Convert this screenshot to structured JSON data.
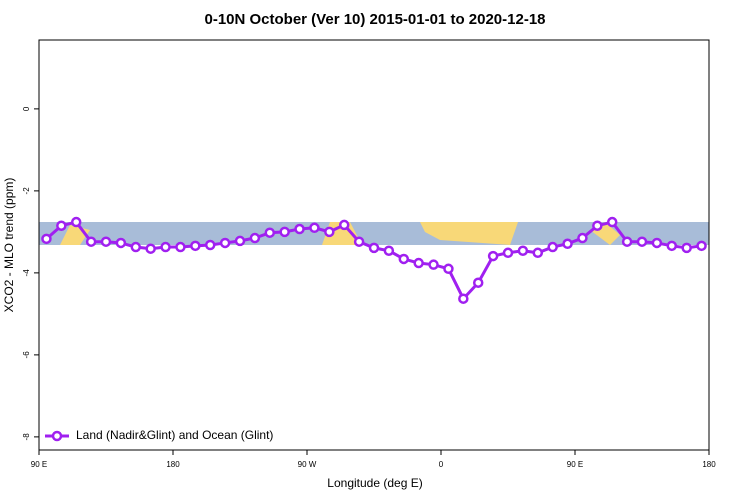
{
  "chart_data": {
    "type": "line",
    "title": "0-10N October (Ver 10)   2015-01-01 to 2020-12-18",
    "x_label": "Longitude (deg E)",
    "y_label": "XCO2 - MLO trend (ppm)",
    "x": [
      95,
      105,
      115,
      125,
      135,
      145,
      155,
      165,
      175,
      185,
      195,
      205,
      215,
      225,
      235,
      245,
      255,
      265,
      275,
      285,
      295,
      305,
      315,
      325,
      335,
      345,
      355,
      365,
      375,
      385,
      395,
      405,
      415,
      425,
      435,
      445,
      455,
      465,
      475,
      485,
      495,
      505,
      515,
      525,
      535
    ],
    "series": [
      {
        "name": "Land (Nadir&Glint) and Ocean (Glint)",
        "color": "#a020f0",
        "values": [
          -3.17,
          -2.85,
          -2.76,
          -3.24,
          -3.24,
          -3.27,
          -3.37,
          -3.41,
          -3.37,
          -3.37,
          -3.34,
          -3.32,
          -3.27,
          -3.22,
          -3.15,
          -3.02,
          -3.0,
          -2.93,
          -2.9,
          -3.0,
          -2.83,
          -3.24,
          -3.39,
          -3.46,
          -3.66,
          -3.76,
          -3.8,
          -3.9,
          -4.63,
          -4.24,
          -3.59,
          -3.51,
          -3.46,
          -3.51,
          -3.37,
          -3.29,
          -3.15,
          -2.85,
          -2.76,
          -3.24,
          -3.24,
          -3.27,
          -3.34,
          -3.39,
          -3.34
        ]
      }
    ],
    "xlim": [
      90,
      540
    ],
    "xticks": [
      {
        "value": 90,
        "label": "90 E"
      },
      180,
      {
        "value": 270,
        "label": "90 W"
      },
      {
        "value": 360,
        "label": "0"
      },
      {
        "value": 450,
        "label": "90 E"
      },
      {
        "value": 540,
        "label": "180"
      }
    ],
    "ylim": [
      -8.32,
      1.68
    ],
    "yticks": [
      0,
      -2,
      -4,
      -6,
      -8
    ],
    "legend": "bottom-left"
  }
}
